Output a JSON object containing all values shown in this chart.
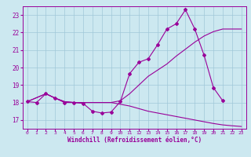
{
  "bg_color": "#cce8f0",
  "grid_color": "#a0c8d8",
  "line_color": "#990099",
  "xlim": [
    -0.5,
    23.5
  ],
  "ylim": [
    16.5,
    23.5
  ],
  "xticks": [
    0,
    1,
    2,
    3,
    4,
    5,
    6,
    7,
    8,
    9,
    10,
    11,
    12,
    13,
    14,
    15,
    16,
    17,
    18,
    19,
    20,
    21,
    22,
    23
  ],
  "yticks": [
    17,
    18,
    19,
    20,
    21,
    22,
    23
  ],
  "xlabel": "Windchill (Refroidissement éolien,°C)",
  "line1_x": [
    0,
    1,
    2,
    3,
    4,
    5,
    6,
    7,
    8,
    9,
    10,
    11,
    12,
    13,
    14,
    15,
    16,
    17,
    18,
    19,
    20,
    21
  ],
  "line1_y": [
    18.05,
    18.0,
    18.5,
    18.25,
    18.0,
    18.0,
    17.95,
    17.5,
    17.4,
    17.45,
    18.05,
    19.65,
    20.3,
    20.5,
    21.3,
    22.2,
    22.5,
    23.3,
    22.2,
    20.7,
    18.85,
    18.1
  ],
  "line2_x": [
    0,
    2,
    3,
    4,
    5,
    6,
    7,
    8,
    9,
    10,
    11,
    12,
    13,
    14,
    15,
    16,
    17,
    18,
    19,
    20,
    21,
    22,
    23
  ],
  "line2_y": [
    18.05,
    18.5,
    18.25,
    18.05,
    18.0,
    18.0,
    18.0,
    18.0,
    18.0,
    18.1,
    18.5,
    19.0,
    19.5,
    19.85,
    20.2,
    20.65,
    21.05,
    21.45,
    21.8,
    22.05,
    22.2,
    22.2,
    22.2
  ],
  "line3_x": [
    0,
    2,
    3,
    4,
    5,
    6,
    7,
    8,
    9,
    10,
    11,
    12,
    13,
    14,
    15,
    16,
    17,
    18,
    19,
    20,
    21,
    22,
    23
  ],
  "line3_y": [
    18.05,
    18.5,
    18.25,
    18.05,
    18.0,
    18.0,
    18.0,
    18.0,
    18.0,
    17.9,
    17.8,
    17.65,
    17.5,
    17.4,
    17.3,
    17.2,
    17.1,
    17.0,
    16.9,
    16.8,
    16.72,
    16.67,
    16.63
  ]
}
